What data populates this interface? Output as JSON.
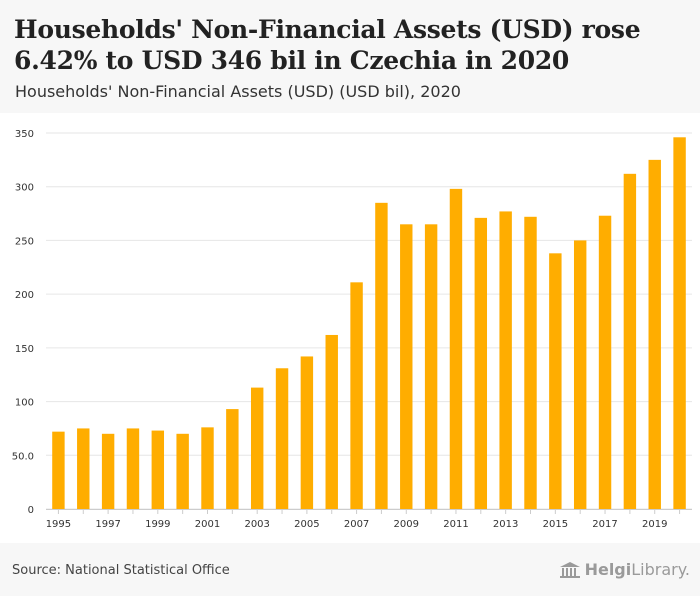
{
  "header": {
    "title": "Households' Non-Financial Assets (USD) rose 6.42% to USD 346 bil in Czechia in 2020",
    "subtitle": "Households' Non-Financial Assets (USD) (USD bil), 2020"
  },
  "footer": {
    "source": "Source: National Statistical Office",
    "logo_brand": "Helgi",
    "logo_suffix": "Library."
  },
  "colors": {
    "bar": "#FFAD00",
    "grid": "#e6e6e6",
    "axis_text": "#333333"
  },
  "chart_data": {
    "type": "bar",
    "title": "Households' Non-Financial Assets (USD) (USD bil), 2020",
    "xlabel": "",
    "ylabel": "",
    "ylim": [
      0,
      350
    ],
    "yticks": [
      0,
      50,
      100,
      150,
      200,
      250,
      300,
      350
    ],
    "ytick_labels": [
      "0",
      "50.0",
      "100",
      "150",
      "200",
      "250",
      "300",
      "350"
    ],
    "categories": [
      "1995",
      "1996",
      "1997",
      "1998",
      "1999",
      "2000",
      "2001",
      "2002",
      "2003",
      "2004",
      "2005",
      "2006",
      "2007",
      "2008",
      "2009",
      "2010",
      "2011",
      "2012",
      "2013",
      "2014",
      "2015",
      "2016",
      "2017",
      "2018",
      "2019",
      "2020"
    ],
    "xtick_labels": [
      "1995",
      "1997",
      "1999",
      "2001",
      "2003",
      "2005",
      "2007",
      "2009",
      "2011",
      "2013",
      "2015",
      "2017",
      "2019"
    ],
    "values": [
      72,
      75,
      70,
      75,
      73,
      70,
      76,
      93,
      113,
      131,
      142,
      162,
      211,
      285,
      265,
      265,
      298,
      271,
      277,
      272,
      238,
      250,
      273,
      312,
      325,
      346
    ],
    "grid": true
  }
}
